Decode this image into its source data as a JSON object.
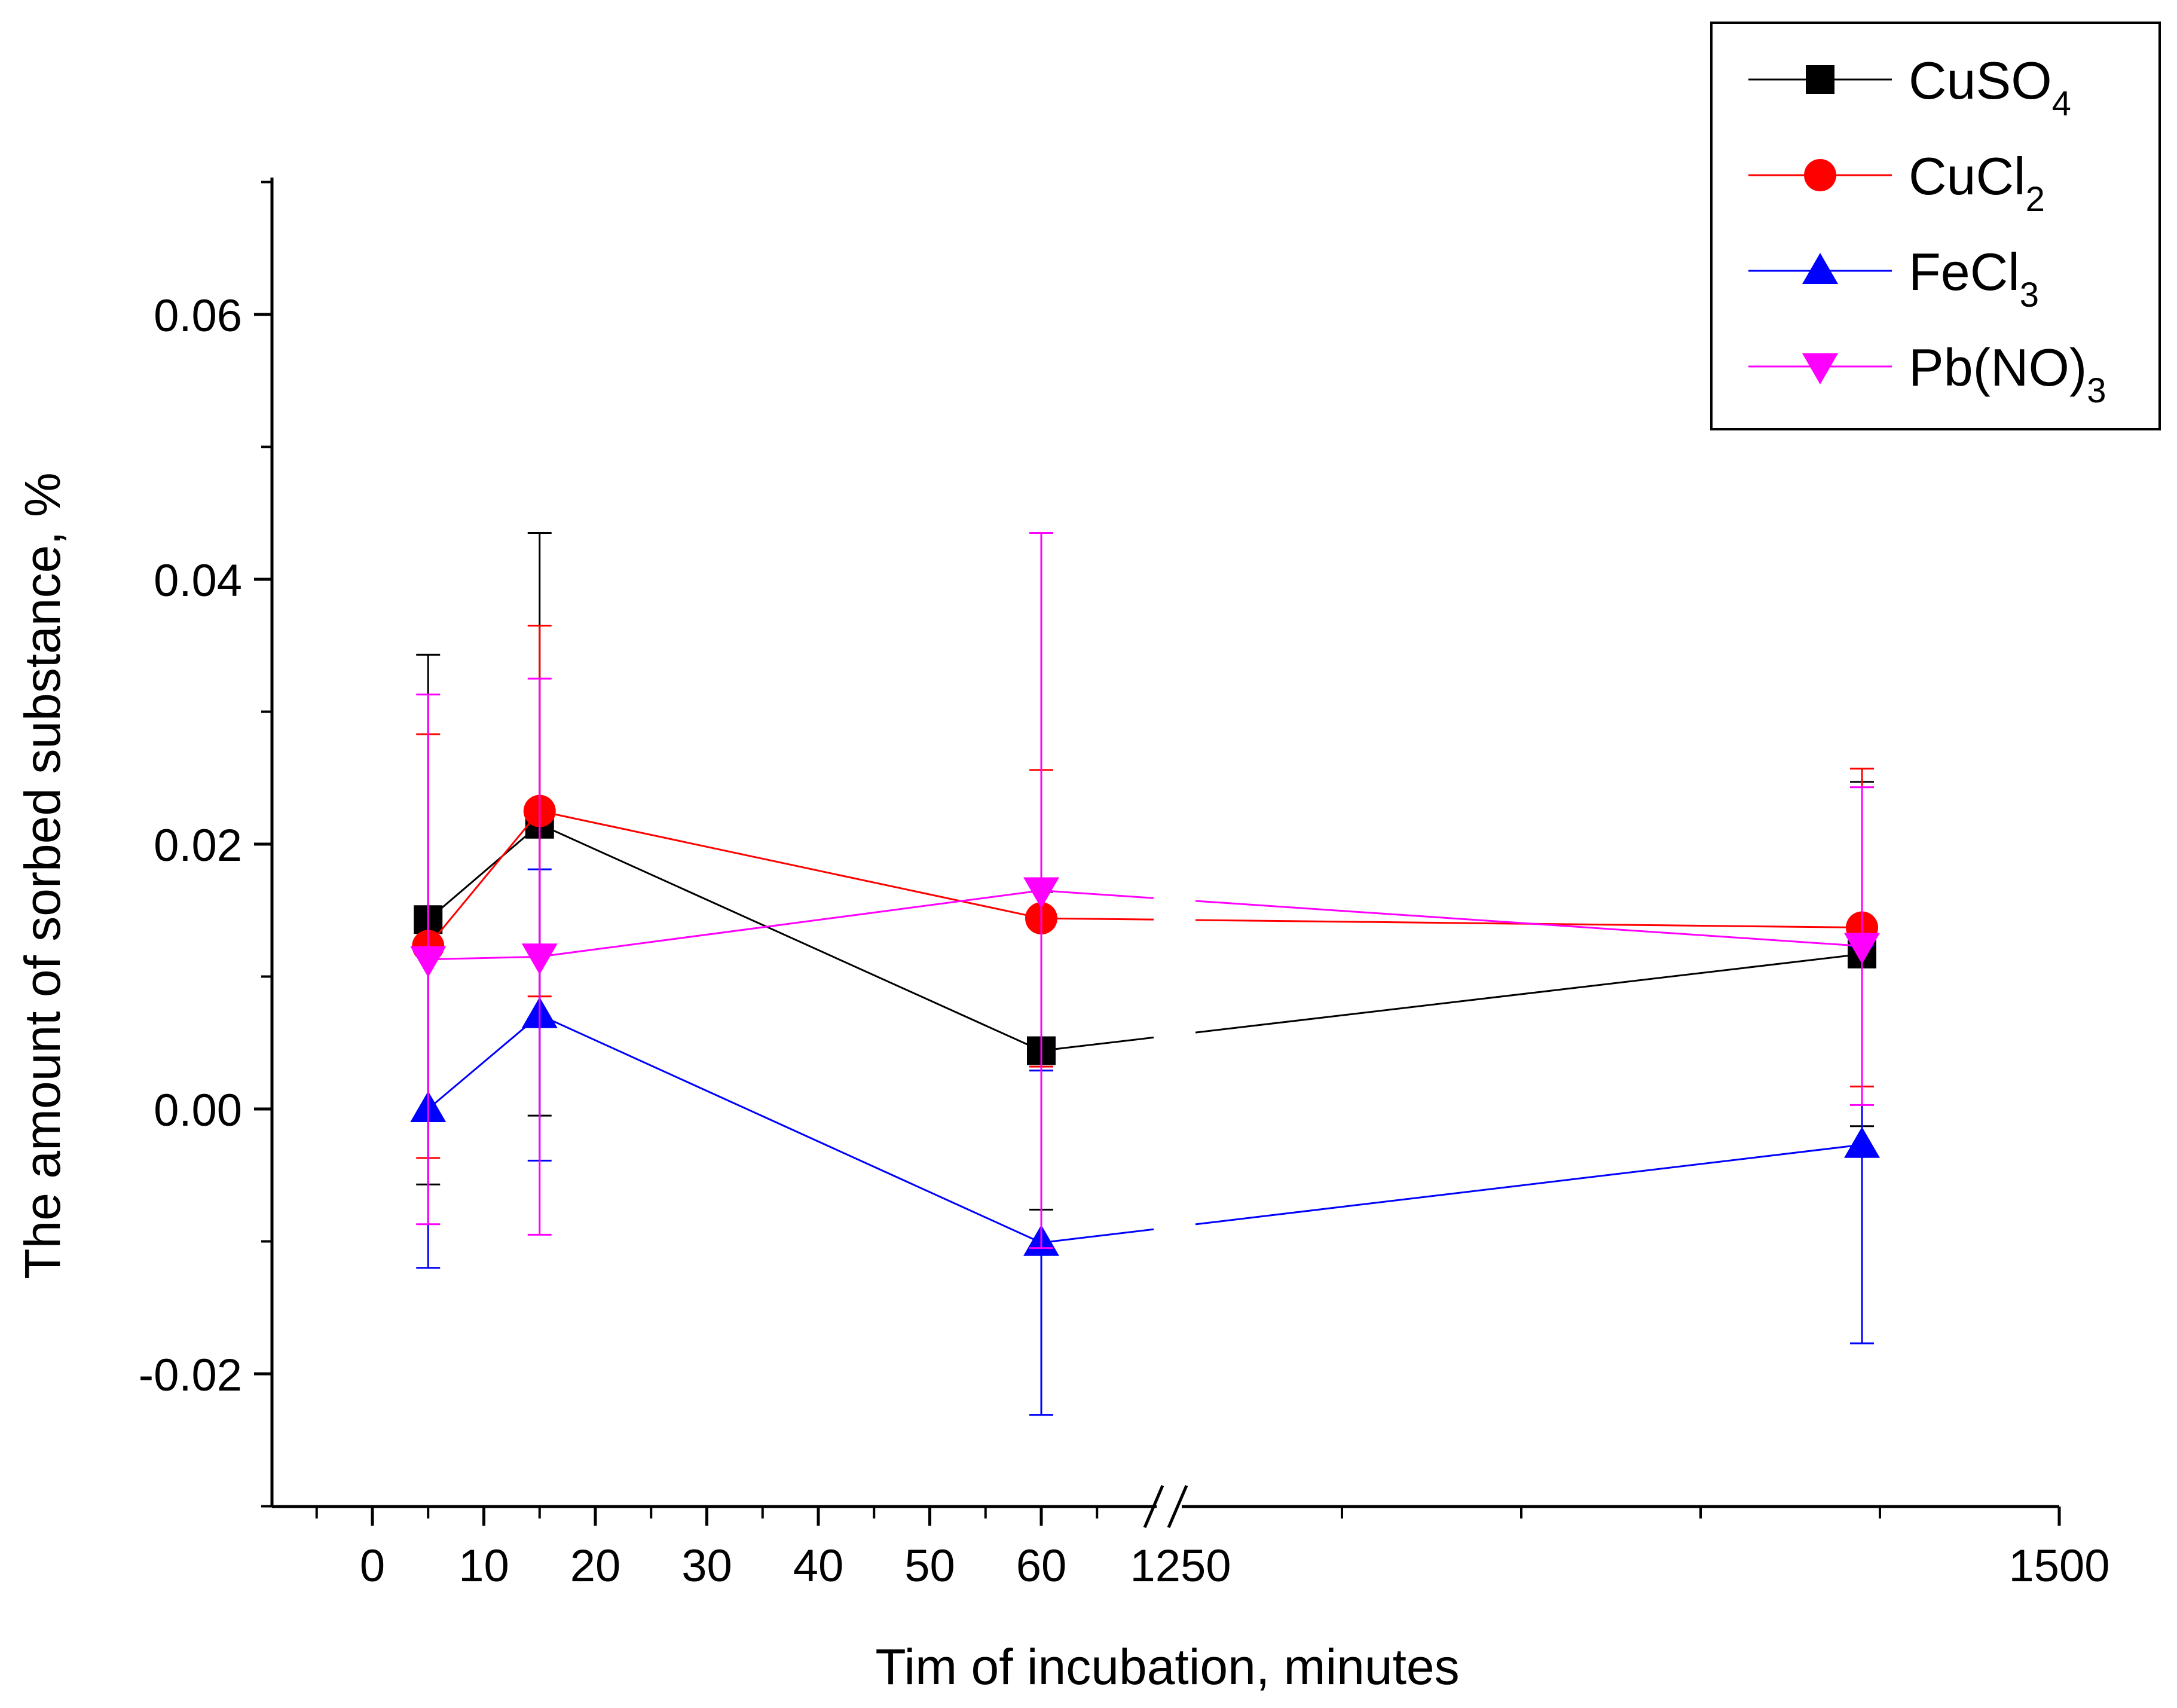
{
  "chart_data": {
    "type": "line",
    "xlabel": "Tim of incubation, minutes",
    "ylabel": "The amount of sorbed substance, %",
    "ylim": [
      -0.03,
      0.07
    ],
    "y_ticks": [
      "0.06",
      "0.04",
      "0.02",
      "0.00",
      "-0.02"
    ],
    "x_axis": {
      "broken": true,
      "segment1": {
        "range": [
          -10,
          70
        ],
        "tick_labels": [
          "0",
          "10",
          "20",
          "30",
          "40",
          "50",
          "60"
        ]
      },
      "segment2": {
        "range": [
          1250,
          1500
        ],
        "tick_labels": [
          "1250",
          "1500"
        ]
      }
    },
    "legend_position": "top-right",
    "series": [
      {
        "name": "CuSO",
        "name_subscript": "4",
        "color": "#000000",
        "marker": "square",
        "x": [
          5,
          15,
          60,
          1445
        ],
        "y": [
          0.0143,
          0.0215,
          0.0044,
          0.0117
        ],
        "err": [
          0.02,
          0.022,
          0.012,
          0.013
        ]
      },
      {
        "name": "CuCl",
        "name_subscript": "2",
        "color": "#ff0000",
        "marker": "circle",
        "x": [
          5,
          15,
          60,
          1445
        ],
        "y": [
          0.0123,
          0.0225,
          0.0144,
          0.0137
        ],
        "err": [
          0.016,
          0.014,
          0.0112,
          0.012
        ]
      },
      {
        "name": "FeCl",
        "name_subscript": "3",
        "color": "#0000ff",
        "marker": "triangle-up",
        "x": [
          5,
          15,
          60,
          1445
        ],
        "y": [
          0.0,
          0.0071,
          -0.0101,
          -0.0027
        ],
        "err": [
          0.012,
          0.011,
          0.013,
          0.015
        ]
      },
      {
        "name": "Pb(NO)",
        "name_subscript": "3",
        "color": "#ff00ff",
        "marker": "triangle-down",
        "x": [
          5,
          15,
          60,
          1445
        ],
        "y": [
          0.0113,
          0.0115,
          0.0165,
          0.0123
        ],
        "err": [
          0.02,
          0.021,
          0.027,
          0.012
        ]
      }
    ]
  }
}
